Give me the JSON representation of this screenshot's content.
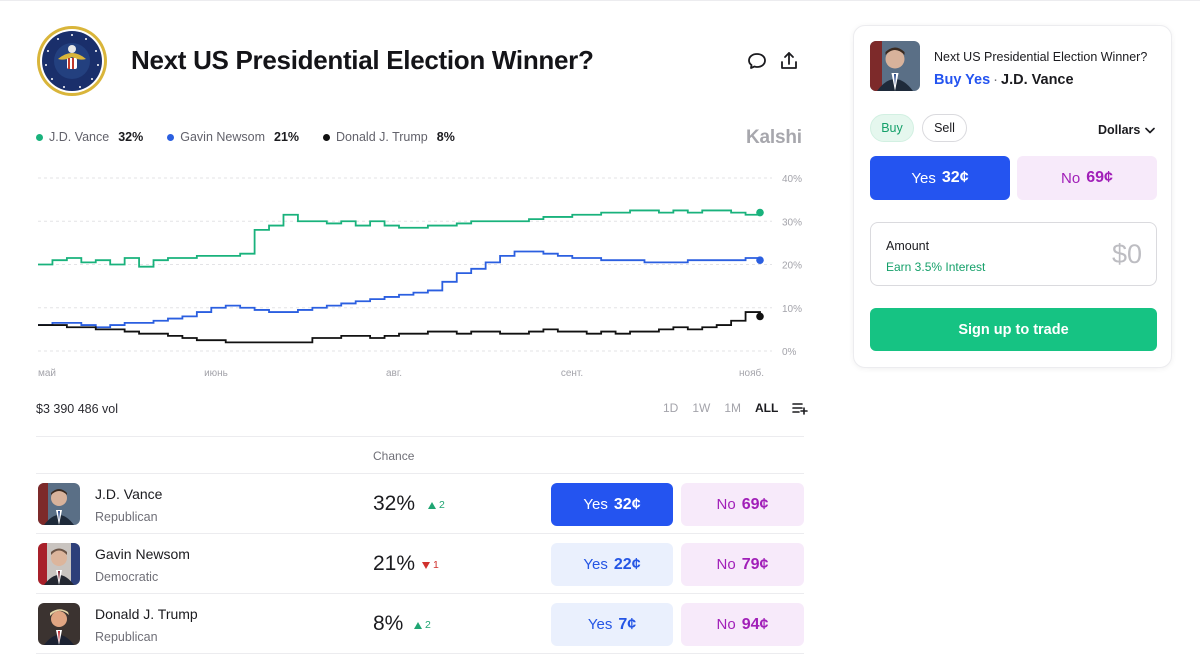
{
  "market": {
    "title": "Next US Presidential Election Winner?",
    "brand": "Kalshi",
    "volume": "$3 390 486 vol",
    "icons": {
      "seal": "presidential-seal-logo",
      "comment": "comment-icon",
      "share": "share-icon",
      "add": "add-list-icon"
    }
  },
  "legend": [
    {
      "name": "J.D. Vance",
      "value": "32%",
      "color": "#19b27c"
    },
    {
      "name": "Gavin Newsom",
      "value": "21%",
      "color": "#2b5fe0"
    },
    {
      "name": "Donald J. Trump",
      "value": "8%",
      "color": "#111111"
    }
  ],
  "ranges": [
    "1D",
    "1W",
    "1M",
    "ALL"
  ],
  "active_range": "ALL",
  "table": {
    "chance_header": "Chance",
    "rows": [
      {
        "name": "J.D. Vance",
        "party": "Republican",
        "chance": "32%",
        "delta": "2",
        "direction": "up",
        "yes_label": "Yes",
        "yes_price": "32¢",
        "no_label": "No",
        "no_price": "69¢",
        "avatar_color": "#35455a"
      },
      {
        "name": "Gavin Newsom",
        "party": "Democratic",
        "chance": "21%",
        "delta": "1",
        "direction": "down",
        "yes_label": "Yes",
        "yes_price": "22¢",
        "no_label": "No",
        "no_price": "79¢",
        "avatar_color": "#4a3b35"
      },
      {
        "name": "Donald J. Trump",
        "party": "Republican",
        "chance": "8%",
        "delta": "2",
        "direction": "up",
        "yes_label": "Yes",
        "yes_price": "7¢",
        "no_label": "No",
        "no_price": "94¢",
        "avatar_color": "#3a3230"
      }
    ]
  },
  "panel": {
    "question": "Next US Presidential Election Winner?",
    "action": "Buy Yes",
    "separator": "·",
    "candidate": "J.D. Vance",
    "buy_tab": "Buy",
    "sell_tab": "Sell",
    "unit": "Dollars",
    "yes_label": "Yes",
    "yes_price": "32¢",
    "no_label": "No",
    "no_price": "69¢",
    "amount_label": "Amount",
    "interest": "Earn 3.5% Interest",
    "amount_value": "$0",
    "signup": "Sign up to trade"
  },
  "chart_data": {
    "type": "line",
    "x_labels": [
      "май",
      "июнь",
      "авг.",
      "сент.",
      "нояб."
    ],
    "y_ticks": [
      "0%",
      "10%",
      "20%",
      "30%",
      "40%"
    ],
    "ylim": [
      0,
      40
    ],
    "grid": true,
    "x": [
      0,
      2,
      4,
      6,
      8,
      10,
      12,
      14,
      16,
      18,
      20,
      22,
      24,
      26,
      28,
      30,
      32,
      34,
      36,
      38,
      40,
      42,
      44,
      46,
      48,
      50,
      52,
      54,
      56,
      58,
      60,
      62,
      64,
      66,
      68,
      70,
      72,
      74,
      76,
      78,
      80,
      82,
      84,
      86,
      88,
      90,
      92,
      94,
      96,
      98,
      100
    ],
    "series": [
      {
        "name": "J.D. Vance",
        "color": "#19b27c",
        "values": [
          20,
          21,
          21.5,
          20.5,
          21,
          20,
          21.5,
          19.5,
          21,
          21.5,
          21.5,
          22,
          22,
          22,
          22.5,
          28,
          29,
          31.5,
          30,
          30,
          29.5,
          30,
          29,
          30,
          29,
          28.5,
          28.5,
          29,
          29,
          29.5,
          30,
          30,
          30,
          30,
          30.5,
          31,
          31,
          31.5,
          31.5,
          32,
          32,
          32.5,
          32.5,
          32,
          32.5,
          32,
          32.5,
          32.5,
          32,
          31.5,
          32
        ]
      },
      {
        "name": "Gavin Newsom",
        "color": "#2b5fe0",
        "values": [
          6,
          6.5,
          6.5,
          6,
          5.5,
          6,
          6.5,
          6.5,
          7,
          7.5,
          8,
          9,
          10,
          10.5,
          10,
          9.5,
          9,
          9,
          9.5,
          10,
          10.5,
          11,
          11.5,
          12,
          12.5,
          13,
          13.5,
          14,
          16,
          18,
          19,
          20.5,
          22,
          23,
          23,
          22.5,
          22,
          21.5,
          21.5,
          21,
          21,
          21,
          20.5,
          20.5,
          20.5,
          21,
          21,
          21,
          21,
          21.5,
          21
        ]
      },
      {
        "name": "Donald J. Trump",
        "color": "#111111",
        "values": [
          6,
          6,
          5.5,
          5.5,
          5,
          5,
          4.5,
          4,
          4,
          3.5,
          3,
          2.5,
          2.5,
          2,
          2,
          2,
          2,
          2,
          2,
          3,
          3,
          3.5,
          3.5,
          3,
          3.5,
          4,
          4,
          4.5,
          4.5,
          4,
          4.5,
          4.5,
          4,
          4,
          4.5,
          5,
          4.5,
          4.5,
          4,
          4.5,
          4,
          4.5,
          4.5,
          5,
          5.5,
          5,
          5.5,
          6,
          7,
          9,
          8
        ]
      }
    ]
  }
}
